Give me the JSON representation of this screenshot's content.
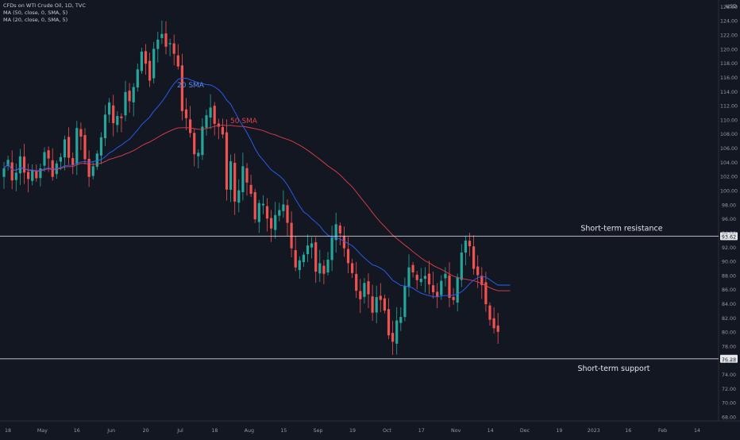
{
  "legend": {
    "symbol_line": "CFDs on WTI Crude Oil, 1D, TVC",
    "ma50_line": "MA (50, close, 0, SMA, 5)",
    "ma20_line": "MA (20, close, 0, SMA, 5)"
  },
  "price_scale": {
    "currency": "USD"
  },
  "colors": {
    "background": "#131722",
    "up": "#26a69a",
    "down": "#ef5350",
    "sma20": "#2962ff",
    "sma50": "#e0404d",
    "level_line": "#d1d4dc",
    "text": "#d1d4dc"
  },
  "chart_data": {
    "type": "candlestick",
    "title": "CFDs on WTI Crude Oil, 1D, TVC",
    "ylabel": "USD",
    "ylim": [
      67.5,
      127
    ],
    "y_ticks": [
      68,
      70,
      72,
      74,
      76,
      78,
      80,
      82,
      84,
      86,
      88,
      90,
      92,
      94,
      96,
      98,
      100,
      102,
      104,
      106,
      108,
      110,
      112,
      114,
      116,
      118,
      120,
      122,
      124,
      126
    ],
    "x_tick_labels": [
      "18",
      "May",
      "16",
      "Jun",
      "20",
      "Jul",
      "18",
      "Aug",
      "15",
      "Sep",
      "19",
      "Oct",
      "17",
      "Nov",
      "14",
      "Dec",
      "19",
      "2023",
      "16",
      "Feb",
      "14"
    ],
    "grid": false,
    "closes": [
      103.2,
      104.4,
      101.5,
      102.6,
      104.9,
      102.6,
      101.7,
      103.0,
      101.8,
      103.2,
      105.5,
      104.6,
      102.0,
      103.9,
      104.8,
      107.3,
      104.7,
      103.7,
      108.9,
      107.7,
      104.5,
      102.0,
      103.5,
      105.3,
      107.6,
      110.8,
      112.5,
      109.6,
      110.6,
      110.3,
      114.0,
      112.7,
      114.7,
      117.2,
      119.7,
      118.0,
      115.6,
      120.1,
      121.4,
      122.2,
      120.4,
      120.9,
      119.4,
      117.6,
      111.3,
      110.3,
      108.2,
      105.2,
      105.4,
      109.1,
      110.7,
      111.8,
      109.5,
      109.1,
      108.0,
      100.2,
      104.2,
      98.5,
      100.1,
      103.5,
      101.2,
      99.6,
      96.0,
      98.3,
      98.2,
      96.1,
      94.7,
      96.6,
      97.3,
      98.1,
      95.5,
      91.9,
      89.2,
      90.2,
      91.0,
      92.3,
      92.6,
      88.6,
      89.8,
      88.3,
      90.3,
      93.4,
      95.3,
      94.0,
      91.9,
      89.8,
      88.4,
      85.9,
      84.7,
      87.0,
      85.4,
      82.8,
      85.0,
      84.6,
      83.1,
      79.6,
      78.7,
      81.7,
      82.2,
      86.6,
      89.2,
      88.5,
      87.4,
      87.6,
      88.0,
      86.8,
      85.7,
      85.1,
      87.3,
      88.3,
      84.9,
      84.6,
      87.8,
      91.3,
      93.0,
      92.2,
      89.0,
      88.1,
      86.7,
      84.0,
      81.8,
      80.6,
      80.1
    ],
    "sma20_end": 86.7,
    "sma50_end": 85.9,
    "horizontal_levels": [
      {
        "value": 93.62,
        "value_label": "93.62",
        "label": "Short-term resistance"
      },
      {
        "value": 76.28,
        "value_label": "76.28",
        "label": "Short-term support"
      }
    ],
    "annotations": [
      {
        "text": "20 SMA",
        "series": "sma20"
      },
      {
        "text": "50 SMA",
        "series": "sma50"
      }
    ]
  }
}
